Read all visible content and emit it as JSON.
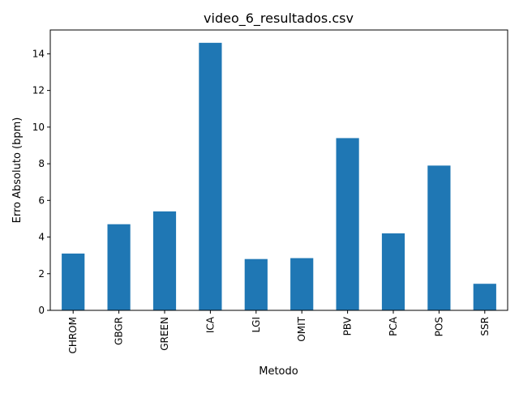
{
  "chart_data": {
    "type": "bar",
    "title": "video_6_resultados.csv",
    "xlabel": "Metodo",
    "ylabel": "Erro Absoluto (bpm)",
    "categories": [
      "CHROM",
      "GBGR",
      "GREEN",
      "ICA",
      "LGI",
      "OMIT",
      "PBV",
      "PCA",
      "POS",
      "SSR"
    ],
    "values": [
      3.1,
      4.7,
      5.4,
      14.6,
      2.8,
      2.85,
      9.4,
      4.2,
      7.9,
      1.45
    ],
    "ylim": [
      0,
      15.3
    ],
    "yticks": [
      0,
      2,
      4,
      6,
      8,
      10,
      12,
      14
    ],
    "ytick_labels": [
      "0",
      "2",
      "4",
      "6",
      "8",
      "10",
      "12",
      "14"
    ],
    "grid": false,
    "legend": "none",
    "bar_color": "#1f77b4"
  }
}
